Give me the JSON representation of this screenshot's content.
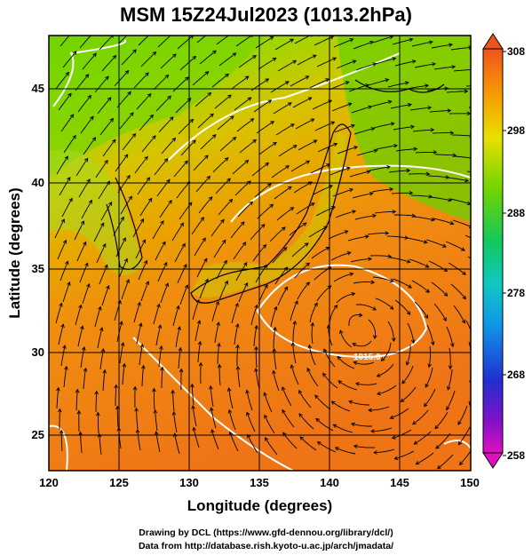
{
  "title": "MSM 15Z24Jul2023 (1013.2hPa)",
  "x_axis": {
    "label": "Longitude (degrees)",
    "ticks": [
      "120",
      "125",
      "130",
      "135",
      "140",
      "145",
      "150"
    ]
  },
  "y_axis": {
    "label": "Latitude  (degrees)",
    "ticks": [
      "45",
      "40",
      "35",
      "30",
      "25"
    ]
  },
  "colorbar": {
    "ticks": [
      "308",
      "298",
      "288",
      "278",
      "268",
      "258"
    ]
  },
  "contour_label": "1015.0",
  "credits": {
    "line1": "Drawing by DCL (https://www.gfd-dennou.org/library/dcl/)",
    "line2": "Data from http://database.rish.kyoto-u.ac.jp/arch/jmadata/"
  }
}
